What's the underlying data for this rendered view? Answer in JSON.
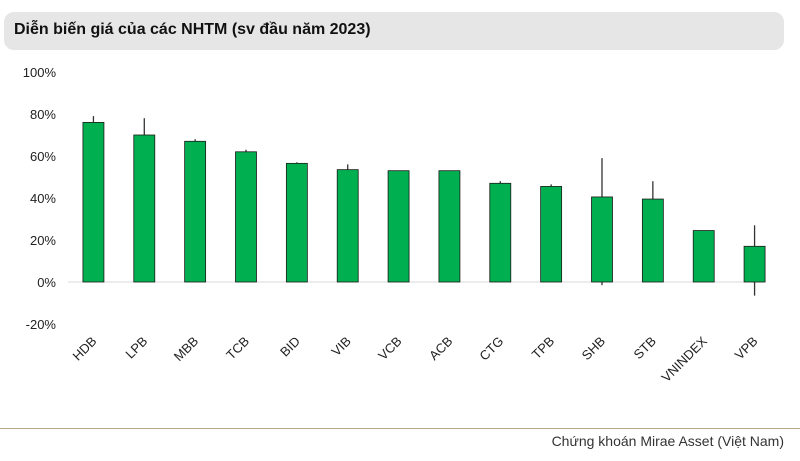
{
  "header": {
    "title": "Diễn biến giá của các NHTM (sv đầu năm 2023)"
  },
  "footer": {
    "source": "Chứng khoán Mirae Asset (Việt Nam)"
  },
  "colors": {
    "bar": "#00b050",
    "bar_edge": "#1a1a1a",
    "whisker": "#333333",
    "axis": "#d9d9d9"
  },
  "chart_data": {
    "type": "bar",
    "title": "Diễn biến giá của các NHTM (sv đầu năm 2023)",
    "xlabel": "",
    "ylabel": "",
    "ylim": [
      -20,
      100
    ],
    "yticks": [
      -20,
      0,
      20,
      40,
      60,
      80,
      100
    ],
    "ytick_labels": [
      "-20%",
      "0%",
      "20%",
      "40%",
      "60%",
      "80%",
      "100%"
    ],
    "grid": false,
    "categories": [
      "HDB",
      "LPB",
      "MBB",
      "TCB",
      "BID",
      "VIB",
      "VCB",
      "ACB",
      "CTG",
      "TPB",
      "SHB",
      "STB",
      "VNINDEX",
      "VPB"
    ],
    "values": [
      76,
      70,
      67,
      62,
      56.5,
      53.5,
      53,
      53,
      47,
      45.5,
      40.5,
      39.5,
      24.5,
      17
    ],
    "high": [
      79,
      78,
      68,
      63,
      57,
      56,
      53,
      53,
      48,
      46.5,
      59,
      48,
      24.5,
      27
    ],
    "low": [
      76,
      70,
      67,
      62,
      56.5,
      53.5,
      53,
      53,
      47,
      45.5,
      -1.5,
      39.5,
      24.5,
      -6.5
    ]
  }
}
